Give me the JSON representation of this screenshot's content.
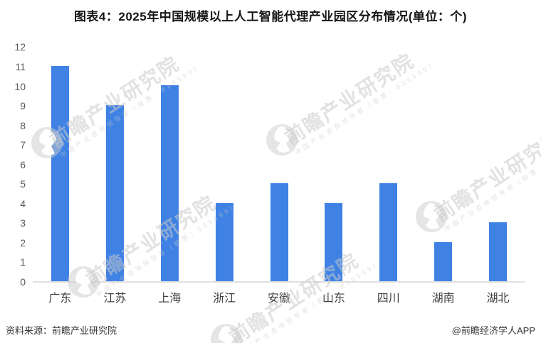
{
  "title": "图表4：2025年中国规模以上人工智能代理产业园区分布情况(单位：个)",
  "chart_data": {
    "type": "bar",
    "title": "图表4：2025年中国规模以上人工智能代理产业园区分布情况(单位：个)",
    "categories": [
      "广东",
      "江苏",
      "上海",
      "浙江",
      "安徽",
      "山东",
      "四川",
      "湖南",
      "湖北"
    ],
    "values": [
      11,
      9,
      10,
      4,
      5,
      4,
      5,
      2,
      3
    ],
    "xlabel": "",
    "ylabel": "",
    "ylim": [
      0,
      12
    ],
    "ytick_interval": 1,
    "yticks": [
      0,
      1,
      2,
      3,
      4,
      5,
      6,
      7,
      8,
      9,
      10,
      11,
      12
    ],
    "grid": false,
    "legend": "none",
    "bar_color": "#3f82e4"
  },
  "watermark": {
    "main": "前瞻产业研究院",
    "sub": "中国产业咨询领导者（股票：839599）"
  },
  "footer": {
    "source": "资料来源：前瞻产业研究院",
    "brand": "@前瞻经济学人APP"
  },
  "colors": {
    "bar": "#3f82e4",
    "title_text": "#151515",
    "axis_line": "#e0e0e0",
    "ytick_text": "#595959",
    "xlabel_text": "#3f3f3f",
    "footer_text": "#363636",
    "watermark": "rgba(203,203,203,0.55)"
  }
}
